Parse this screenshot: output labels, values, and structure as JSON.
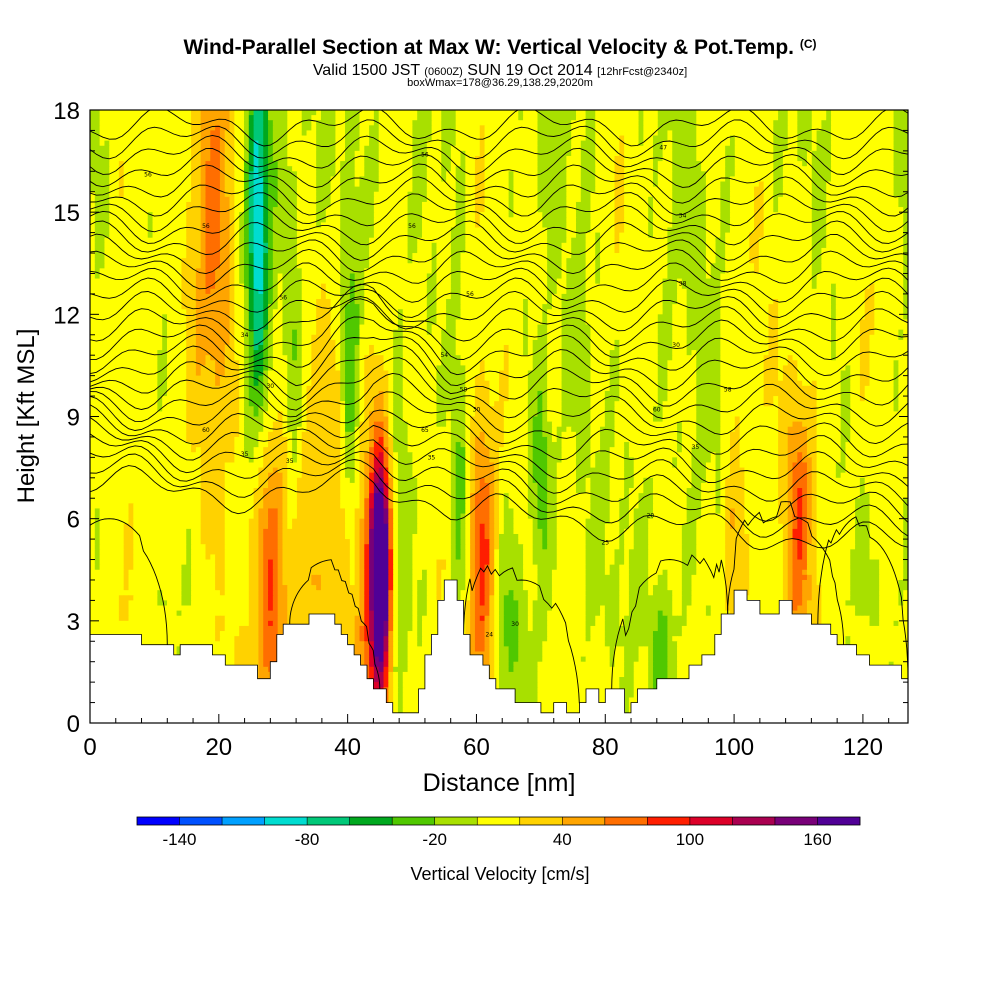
{
  "header": {
    "title_main": "Wind-Parallel Section at Max W: Vertical Velocity & Pot.Temp.",
    "title_tag": "(C)",
    "valid_a": "Valid 1500 JST",
    "valid_b": "(0600Z)",
    "valid_c": "SUN 19 Oct 2014",
    "valid_d": "[12hrFcst@2340z]",
    "subtitle2": "boxWmax=178@36.29,138.29,2020m"
  },
  "chart_data": {
    "type": "heatmap",
    "xlabel": "Distance [nm]",
    "ylabel": "Height [Kft MSL]",
    "xlim": [
      0,
      127
    ],
    "ylim": [
      0,
      18
    ],
    "x_ticks": [
      0,
      20,
      40,
      60,
      80,
      100,
      120
    ],
    "y_ticks": [
      0,
      3,
      6,
      9,
      12,
      15,
      18
    ],
    "colorbar": {
      "label": "Vertical Velocity [cm/s]",
      "min": -160,
      "max": 180,
      "step": 20,
      "tick_values": [
        -140,
        -80,
        -20,
        40,
        100,
        160
      ],
      "colors": [
        "#0000ff",
        "#0050ff",
        "#00a0ff",
        "#00dcd0",
        "#00c878",
        "#00a81e",
        "#50c800",
        "#a8e000",
        "#ffff00",
        "#ffd200",
        "#ffa500",
        "#ff6e00",
        "#ff1e00",
        "#dc0028",
        "#aa0050",
        "#780078",
        "#500096"
      ]
    },
    "terrain": [
      [
        0,
        2.6
      ],
      [
        8,
        2.6
      ],
      [
        8,
        2.3
      ],
      [
        13,
        2.3
      ],
      [
        13,
        2.0
      ],
      [
        14,
        2.0
      ],
      [
        14,
        2.3
      ],
      [
        19,
        2.3
      ],
      [
        19,
        2.0
      ],
      [
        21,
        2.0
      ],
      [
        21,
        1.7
      ],
      [
        26,
        1.7
      ],
      [
        26,
        1.3
      ],
      [
        28,
        1.3
      ],
      [
        28,
        1.8
      ],
      [
        29,
        1.8
      ],
      [
        29,
        2.6
      ],
      [
        30,
        2.6
      ],
      [
        30,
        2.9
      ],
      [
        34,
        2.9
      ],
      [
        34,
        3.2
      ],
      [
        38,
        3.2
      ],
      [
        38,
        2.9
      ],
      [
        39,
        2.9
      ],
      [
        39,
        2.6
      ],
      [
        40,
        2.6
      ],
      [
        40,
        2.3
      ],
      [
        41,
        2.3
      ],
      [
        41,
        2.0
      ],
      [
        42,
        2.0
      ],
      [
        42,
        1.7
      ],
      [
        43,
        1.7
      ],
      [
        43,
        1.3
      ],
      [
        44,
        1.3
      ],
      [
        44,
        1.0
      ],
      [
        46,
        1.0
      ],
      [
        46,
        0.6
      ],
      [
        47,
        0.6
      ],
      [
        47,
        0.3
      ],
      [
        51,
        0.3
      ],
      [
        51,
        1.0
      ],
      [
        52,
        1.0
      ],
      [
        52,
        2.0
      ],
      [
        53,
        2.0
      ],
      [
        53,
        2.6
      ],
      [
        54,
        2.6
      ],
      [
        54,
        3.6
      ],
      [
        55,
        3.6
      ],
      [
        55,
        4.2
      ],
      [
        57,
        4.2
      ],
      [
        57,
        3.6
      ],
      [
        58,
        3.6
      ],
      [
        58,
        2.6
      ],
      [
        59,
        2.6
      ],
      [
        59,
        2.0
      ],
      [
        61,
        2.0
      ],
      [
        61,
        1.7
      ],
      [
        62,
        1.7
      ],
      [
        62,
        1.3
      ],
      [
        63,
        1.3
      ],
      [
        63,
        1.0
      ],
      [
        66,
        1.0
      ],
      [
        66,
        0.6
      ],
      [
        70,
        0.6
      ],
      [
        70,
        0.3
      ],
      [
        72,
        0.3
      ],
      [
        72,
        0.6
      ],
      [
        74,
        0.6
      ],
      [
        74,
        0.3
      ],
      [
        76,
        0.3
      ],
      [
        76,
        0.6
      ],
      [
        77,
        0.6
      ],
      [
        77,
        1.0
      ],
      [
        79,
        1.0
      ],
      [
        79,
        0.6
      ],
      [
        80,
        0.6
      ],
      [
        80,
        1.0
      ],
      [
        83,
        1.0
      ],
      [
        83,
        0.3
      ],
      [
        84,
        0.3
      ],
      [
        84,
        0.6
      ],
      [
        85,
        0.6
      ],
      [
        85,
        1.0
      ],
      [
        88,
        1.0
      ],
      [
        88,
        1.3
      ],
      [
        93,
        1.3
      ],
      [
        93,
        1.7
      ],
      [
        95,
        1.7
      ],
      [
        95,
        2.0
      ],
      [
        97,
        2.0
      ],
      [
        97,
        2.6
      ],
      [
        98,
        2.6
      ],
      [
        98,
        3.2
      ],
      [
        100,
        3.2
      ],
      [
        100,
        3.9
      ],
      [
        102,
        3.9
      ],
      [
        102,
        3.6
      ],
      [
        104,
        3.6
      ],
      [
        104,
        3.2
      ],
      [
        107,
        3.2
      ],
      [
        107,
        3.6
      ],
      [
        109,
        3.6
      ],
      [
        109,
        3.2
      ],
      [
        112,
        3.2
      ],
      [
        112,
        2.9
      ],
      [
        115,
        2.9
      ],
      [
        115,
        2.6
      ],
      [
        116,
        2.6
      ],
      [
        116,
        2.3
      ],
      [
        119,
        2.3
      ],
      [
        119,
        2.0
      ],
      [
        121,
        2.0
      ],
      [
        121,
        1.7
      ],
      [
        126,
        1.7
      ],
      [
        126,
        1.3
      ],
      [
        127,
        1.3
      ]
    ],
    "w_features": [
      {
        "x": 45.0,
        "y": 4.6,
        "w": 1.0,
        "h": 2.0,
        "v": 180
      },
      {
        "x": 45.0,
        "y": 4.2,
        "w": 1.6,
        "h": 3.8,
        "v": 110
      },
      {
        "x": 44.5,
        "y": 4.6,
        "w": 3.0,
        "h": 4.6,
        "v": 60
      },
      {
        "x": 43.5,
        "y": 4.0,
        "w": 6.0,
        "h": 7.0,
        "v": 20
      },
      {
        "x": 28.0,
        "y": 4.4,
        "w": 2.2,
        "h": 4.0,
        "v": 60
      },
      {
        "x": 28.0,
        "y": 4.4,
        "w": 4.0,
        "h": 7.0,
        "v": 30
      },
      {
        "x": 34.0,
        "y": 5.0,
        "w": 4.0,
        "h": 6.0,
        "v": 20
      },
      {
        "x": 61.0,
        "y": 4.8,
        "w": 2.0,
        "h": 4.0,
        "v": 60
      },
      {
        "x": 61.5,
        "y": 4.5,
        "w": 5.0,
        "h": 6.5,
        "v": 25
      },
      {
        "x": 19.0,
        "y": 15.0,
        "w": 3.0,
        "h": 6.0,
        "v": 50
      },
      {
        "x": 21.0,
        "y": 14.5,
        "w": 6.0,
        "h": 10.0,
        "v": 25
      },
      {
        "x": 100.0,
        "y": 5.5,
        "w": 1.8,
        "h": 3.0,
        "v": 50
      },
      {
        "x": 110.0,
        "y": 6.0,
        "w": 1.8,
        "h": 3.5,
        "v": 50
      },
      {
        "x": 110.5,
        "y": 6.5,
        "w": 4.0,
        "h": 6.0,
        "v": 25
      },
      {
        "x": 26.0,
        "y": 15.0,
        "w": 1.5,
        "h": 4.5,
        "v": -80
      },
      {
        "x": 26.5,
        "y": 14.0,
        "w": 3.0,
        "h": 9.0,
        "v": -40
      },
      {
        "x": 48.0,
        "y": 5.0,
        "w": 1.5,
        "h": 5.0,
        "v": -40
      },
      {
        "x": 57.5,
        "y": 6.5,
        "w": 1.5,
        "h": 5.0,
        "v": -40
      },
      {
        "x": 64.5,
        "y": 2.5,
        "w": 2.5,
        "h": 3.0,
        "v": -40
      },
      {
        "x": 40.5,
        "y": 9.5,
        "w": 1.3,
        "h": 5.5,
        "v": -40
      },
      {
        "x": 31.5,
        "y": 10.5,
        "w": 1.3,
        "h": 4.0,
        "v": -40
      },
      {
        "x": 89.0,
        "y": 1.8,
        "w": 1.6,
        "h": 2.0,
        "v": -40
      },
      {
        "x": 70.0,
        "y": 7.5,
        "w": 1.4,
        "h": 3.0,
        "v": -40
      },
      {
        "x": 37.0,
        "y": 9.0,
        "w": 3.0,
        "h": 6.0,
        "v": 20
      },
      {
        "x": 5.0,
        "y": 13.0,
        "w": 4.0,
        "h": 8.0,
        "v": 15
      },
      {
        "x": 60.0,
        "y": 14.0,
        "w": 4.0,
        "h": 6.0,
        "v": 15
      },
      {
        "x": 82.0,
        "y": 14.0,
        "w": 4.0,
        "h": 6.0,
        "v": 12
      },
      {
        "x": 104.0,
        "y": 14.0,
        "w": 4.0,
        "h": 7.0,
        "v": 12
      },
      {
        "x": 120.0,
        "y": 13.0,
        "w": 4.0,
        "h": 8.0,
        "v": 12
      },
      {
        "x": 8.0,
        "y": 6.0,
        "w": 4.0,
        "h": 3.0,
        "v": 15
      }
    ],
    "isentrope_labels": [
      {
        "text": "56",
        "x": 9,
        "y": 16.1
      },
      {
        "text": "56",
        "x": 52,
        "y": 16.7
      },
      {
        "text": "47",
        "x": 89,
        "y": 16.9
      },
      {
        "text": "56",
        "x": 18,
        "y": 14.6
      },
      {
        "text": "56",
        "x": 50,
        "y": 14.6
      },
      {
        "text": "34",
        "x": 92,
        "y": 14.9
      },
      {
        "text": "56",
        "x": 30,
        "y": 12.5
      },
      {
        "text": "56",
        "x": 59,
        "y": 12.6
      },
      {
        "text": "38",
        "x": 92,
        "y": 12.9
      },
      {
        "text": "34",
        "x": 24,
        "y": 11.4
      },
      {
        "text": "54",
        "x": 55,
        "y": 10.8
      },
      {
        "text": "30",
        "x": 91,
        "y": 11.1
      },
      {
        "text": "30",
        "x": 28,
        "y": 9.9
      },
      {
        "text": "59",
        "x": 58,
        "y": 9.8
      },
      {
        "text": "58",
        "x": 99,
        "y": 9.8
      },
      {
        "text": "30",
        "x": 60,
        "y": 9.2
      },
      {
        "text": "60",
        "x": 88,
        "y": 9.2
      },
      {
        "text": "60",
        "x": 18,
        "y": 8.6
      },
      {
        "text": "65",
        "x": 52,
        "y": 8.6
      },
      {
        "text": "35",
        "x": 94,
        "y": 8.1
      },
      {
        "text": "35",
        "x": 24,
        "y": 7.9
      },
      {
        "text": "35",
        "x": 31,
        "y": 7.7
      },
      {
        "text": "35",
        "x": 53,
        "y": 7.8
      },
      {
        "text": "20",
        "x": 87,
        "y": 6.1
      },
      {
        "text": "25",
        "x": 80,
        "y": 5.3
      },
      {
        "text": "24",
        "x": 62,
        "y": 2.6
      },
      {
        "text": "30",
        "x": 66,
        "y": 2.9
      }
    ]
  }
}
